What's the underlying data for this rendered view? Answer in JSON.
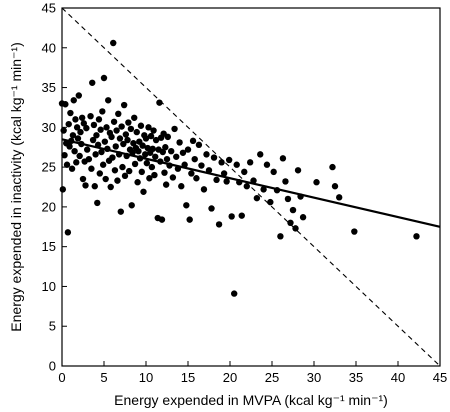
{
  "chart_data": {
    "type": "scatter",
    "title": "",
    "xlabel": "Energy expended in MVPA (kcal kg⁻¹ min⁻¹)",
    "ylabel": "Energy expended in inactivity (kcal kg⁻¹ min⁻¹)",
    "xlim": [
      0,
      45
    ],
    "ylim": [
      0,
      45
    ],
    "xticks": [
      "0",
      "5",
      "10",
      "15",
      "20",
      "25",
      "30",
      "35",
      "40",
      "45"
    ],
    "yticks": [
      "0",
      "5",
      "10",
      "15",
      "20",
      "25",
      "30",
      "35",
      "40",
      "45"
    ],
    "grid": false,
    "series": [
      {
        "kind": "points",
        "marker": "filled-circle",
        "color": "#000000",
        "points": [
          [
            0.0,
            33.0
          ],
          [
            0.1,
            22.2
          ],
          [
            0.2,
            29.6
          ],
          [
            0.3,
            26.5
          ],
          [
            0.4,
            32.9
          ],
          [
            0.5,
            28.0
          ],
          [
            0.6,
            25.3
          ],
          [
            0.7,
            16.8
          ],
          [
            0.8,
            30.4
          ],
          [
            0.9,
            27.6
          ],
          [
            1.0,
            31.8
          ],
          [
            1.1,
            28.3
          ],
          [
            1.2,
            24.8
          ],
          [
            1.3,
            29.0
          ],
          [
            1.4,
            33.4
          ],
          [
            1.5,
            27.0
          ],
          [
            1.6,
            31.0
          ],
          [
            1.7,
            25.6
          ],
          [
            1.8,
            30.0
          ],
          [
            1.9,
            28.6
          ],
          [
            2.0,
            34.0
          ],
          [
            2.1,
            26.4
          ],
          [
            2.2,
            29.4
          ],
          [
            2.3,
            27.9
          ],
          [
            2.4,
            31.2
          ],
          [
            2.5,
            23.5
          ],
          [
            2.6,
            30.5
          ],
          [
            2.7,
            25.7
          ],
          [
            2.8,
            22.7
          ],
          [
            2.9,
            29.9
          ],
          [
            3.0,
            27.2
          ],
          [
            3.2,
            26.0
          ],
          [
            3.4,
            31.4
          ],
          [
            3.5,
            24.8
          ],
          [
            3.6,
            35.6
          ],
          [
            3.7,
            28.4
          ],
          [
            3.8,
            30.3
          ],
          [
            3.9,
            22.6
          ],
          [
            4.0,
            26.6
          ],
          [
            4.1,
            29.0
          ],
          [
            4.2,
            20.5
          ],
          [
            4.3,
            27.8
          ],
          [
            4.4,
            31.0
          ],
          [
            4.5,
            24.2
          ],
          [
            4.6,
            29.7
          ],
          [
            4.7,
            26.9
          ],
          [
            4.8,
            32.0
          ],
          [
            4.9,
            25.3
          ],
          [
            5.0,
            36.2
          ],
          [
            5.1,
            28.2
          ],
          [
            5.2,
            23.5
          ],
          [
            5.3,
            30.0
          ],
          [
            5.4,
            27.3
          ],
          [
            5.5,
            33.4
          ],
          [
            5.6,
            25.8
          ],
          [
            5.7,
            29.3
          ],
          [
            5.8,
            22.5
          ],
          [
            5.9,
            28.8
          ],
          [
            6.0,
            26.2
          ],
          [
            6.1,
            40.6
          ],
          [
            6.2,
            30.7
          ],
          [
            6.3,
            24.6
          ],
          [
            6.4,
            27.6
          ],
          [
            6.5,
            29.6
          ],
          [
            6.6,
            23.3
          ],
          [
            6.7,
            31.7
          ],
          [
            6.8,
            26.6
          ],
          [
            6.9,
            28.6
          ],
          [
            7.0,
            19.4
          ],
          [
            7.1,
            30.1
          ],
          [
            7.2,
            25.0
          ],
          [
            7.3,
            27.9
          ],
          [
            7.4,
            32.8
          ],
          [
            7.5,
            23.9
          ],
          [
            7.6,
            29.1
          ],
          [
            7.7,
            26.4
          ],
          [
            7.8,
            28.4
          ],
          [
            7.9,
            30.6
          ],
          [
            8.0,
            24.5
          ],
          [
            8.1,
            27.2
          ],
          [
            8.2,
            29.8
          ],
          [
            8.3,
            20.2
          ],
          [
            8.4,
            26.8
          ],
          [
            8.5,
            28.0
          ],
          [
            8.6,
            31.2
          ],
          [
            8.7,
            25.4
          ],
          [
            8.8,
            27.4
          ],
          [
            8.9,
            29.4
          ],
          [
            9.0,
            23.1
          ],
          [
            9.1,
            27.0
          ],
          [
            9.2,
            28.2
          ],
          [
            9.3,
            26.1
          ],
          [
            9.4,
            30.2
          ],
          [
            9.5,
            24.4
          ],
          [
            9.6,
            27.7
          ],
          [
            9.7,
            21.9
          ],
          [
            9.8,
            29.0
          ],
          [
            9.9,
            26.6
          ],
          [
            10.0,
            28.6
          ],
          [
            10.1,
            25.5
          ],
          [
            10.2,
            27.4
          ],
          [
            10.3,
            30.0
          ],
          [
            10.4,
            23.6
          ],
          [
            10.5,
            26.8
          ],
          [
            10.6,
            28.9
          ],
          [
            10.7,
            25.0
          ],
          [
            10.8,
            27.3
          ],
          [
            10.9,
            29.6
          ],
          [
            11.0,
            24.0
          ],
          [
            11.1,
            26.3
          ],
          [
            11.2,
            28.4
          ],
          [
            11.4,
            18.6
          ],
          [
            11.5,
            27.2
          ],
          [
            11.6,
            33.1
          ],
          [
            11.7,
            25.7
          ],
          [
            11.8,
            28.7
          ],
          [
            11.9,
            18.4
          ],
          [
            12.0,
            26.9
          ],
          [
            12.1,
            29.2
          ],
          [
            12.2,
            24.3
          ],
          [
            12.3,
            27.5
          ],
          [
            12.4,
            22.8
          ],
          [
            12.5,
            26.0
          ],
          [
            12.6,
            28.8
          ],
          [
            12.8,
            25.2
          ],
          [
            13.0,
            27.0
          ],
          [
            13.2,
            23.7
          ],
          [
            13.4,
            29.8
          ],
          [
            13.6,
            26.3
          ],
          [
            13.8,
            24.8
          ],
          [
            14.0,
            28.1
          ],
          [
            14.2,
            22.6
          ],
          [
            14.4,
            26.8
          ],
          [
            14.6,
            25.3
          ],
          [
            14.8,
            20.2
          ],
          [
            15.0,
            27.2
          ],
          [
            15.2,
            18.4
          ],
          [
            15.4,
            24.2
          ],
          [
            15.6,
            28.3
          ],
          [
            15.8,
            26.0
          ],
          [
            16.0,
            23.6
          ],
          [
            16.3,
            27.8
          ],
          [
            16.6,
            25.2
          ],
          [
            16.9,
            22.2
          ],
          [
            17.2,
            26.6
          ],
          [
            17.5,
            24.6
          ],
          [
            17.8,
            19.8
          ],
          [
            18.1,
            26.2
          ],
          [
            18.4,
            23.4
          ],
          [
            18.7,
            17.8
          ],
          [
            19.0,
            25.6
          ],
          [
            19.3,
            24.2
          ],
          [
            19.6,
            23.2
          ],
          [
            19.9,
            25.9
          ],
          [
            20.2,
            18.8
          ],
          [
            20.5,
            9.1
          ],
          [
            20.8,
            25.3
          ],
          [
            21.1,
            23.1
          ],
          [
            21.4,
            18.9
          ],
          [
            21.7,
            24.4
          ],
          [
            22.0,
            22.6
          ],
          [
            22.4,
            25.6
          ],
          [
            22.8,
            23.3
          ],
          [
            23.2,
            21.1
          ],
          [
            23.6,
            26.6
          ],
          [
            24.0,
            22.2
          ],
          [
            24.4,
            25.3
          ],
          [
            24.8,
            20.6
          ],
          [
            25.2,
            24.4
          ],
          [
            25.6,
            22.1
          ],
          [
            26.0,
            16.3
          ],
          [
            26.3,
            26.1
          ],
          [
            26.6,
            23.2
          ],
          [
            26.9,
            21.0
          ],
          [
            27.2,
            18.0
          ],
          [
            27.5,
            19.6
          ],
          [
            27.8,
            17.3
          ],
          [
            28.1,
            24.6
          ],
          [
            28.4,
            21.3
          ],
          [
            28.7,
            18.7
          ],
          [
            30.3,
            23.1
          ],
          [
            32.2,
            25.0
          ],
          [
            32.5,
            22.6
          ],
          [
            33.0,
            21.2
          ],
          [
            34.8,
            16.9
          ],
          [
            42.2,
            16.3
          ]
        ]
      },
      {
        "kind": "fit-line",
        "style": "solid",
        "color": "#000000",
        "points": [
          [
            0,
            28.5
          ],
          [
            45,
            17.5
          ]
        ]
      },
      {
        "kind": "reference-line",
        "style": "dashed",
        "color": "#000000",
        "points": [
          [
            0,
            45
          ],
          [
            45,
            0
          ]
        ]
      }
    ]
  }
}
